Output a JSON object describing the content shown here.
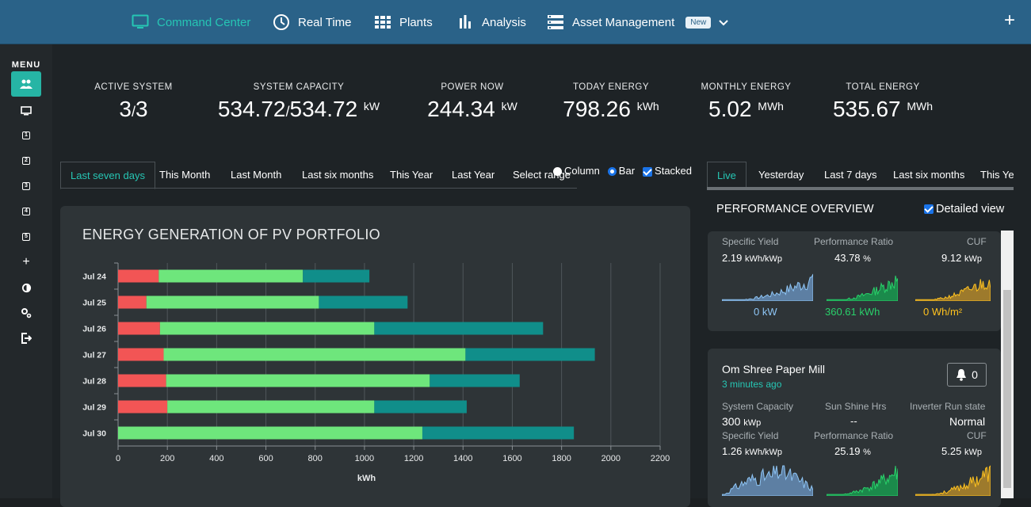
{
  "nav": {
    "items": [
      {
        "label": "Command Center",
        "icon": "monitor-icon",
        "active": true
      },
      {
        "label": "Real Time",
        "icon": "clock-icon"
      },
      {
        "label": "Plants",
        "icon": "grid-icon"
      },
      {
        "label": "Analysis",
        "icon": "bar-chart-icon"
      },
      {
        "label": "Asset Management",
        "icon": "server-icon"
      }
    ],
    "new_badge": "New",
    "plus": "+"
  },
  "sidebar": {
    "menu_label": "MENU",
    "items": [
      {
        "icon": "users-icon",
        "text": ""
      },
      {
        "icon": "monitor-icon",
        "text": ""
      },
      {
        "icon": "plant-1-icon",
        "text": "1"
      },
      {
        "icon": "plant-2-icon",
        "text": "2"
      },
      {
        "icon": "plant-3-icon",
        "text": "3"
      },
      {
        "icon": "plant-4-icon",
        "text": "4"
      },
      {
        "icon": "plant-5-icon",
        "text": "5"
      },
      {
        "icon": "plus-icon",
        "text": "+"
      },
      {
        "icon": "contrast-icon",
        "text": ""
      },
      {
        "icon": "settings-icon",
        "text": ""
      },
      {
        "icon": "logout-icon",
        "text": ""
      }
    ]
  },
  "kpis": {
    "active_system": {
      "label": "ACTIVE SYSTEM",
      "value": "3",
      "total": "3"
    },
    "system_capacity": {
      "label": "SYSTEM CAPACITY",
      "value": "534.72",
      "total": "534.72",
      "unit": "kW"
    },
    "power_now": {
      "label": "POWER NOW",
      "value": "244.34",
      "unit": "kW"
    },
    "today_energy": {
      "label": "TODAY ENERGY",
      "value": "798.26",
      "unit": "kWh"
    },
    "monthly_energy": {
      "label": "MONTHLY ENERGY",
      "value": "5.02",
      "unit": "MWh"
    },
    "total_energy": {
      "label": "TOTAL ENERGY",
      "value": "535.67",
      "unit": "MWh"
    }
  },
  "range_tabs": [
    "Last seven days",
    "This Month",
    "Last Month",
    "Last six months",
    "This Year",
    "Last Year",
    "Select range"
  ],
  "chart_options": {
    "column": "Column",
    "bar": "Bar",
    "stacked": "Stacked"
  },
  "right_tabs": [
    "Live",
    "Yesterday",
    "Last 7 days",
    "Last six months",
    "This Yea"
  ],
  "performance": {
    "title": "PERFORMANCE OVERVIEW",
    "detailed": "Detailed view"
  },
  "plant1": {
    "labels": {
      "yield": "Specific Yield",
      "pr": "Performance Ratio",
      "cuf": "CUF"
    },
    "yield": "2.19",
    "yield_unit": "kWh/kWp",
    "pr": "43.78",
    "pr_unit": "%",
    "cuf": "9.12",
    "cuf_unit": "kWp",
    "power": "0 kW",
    "energy": "360.61 kWh",
    "irr": "0 Wh/m²"
  },
  "plant2": {
    "name": "Om Shree Paper Mill",
    "ago": "3 minutes ago",
    "alerts": "0",
    "labels": {
      "capacity": "System Capacity",
      "sun": "Sun Shine Hrs",
      "inverter": "Inverter Run state",
      "yield": "Specific Yield",
      "pr": "Performance Ratio",
      "cuf": "CUF"
    },
    "capacity": "300",
    "capacity_unit": "kWp",
    "sun": "--",
    "inverter": "Normal",
    "yield": "1.26",
    "yield_unit": "kWh/kWp",
    "pr": "25.19",
    "pr_unit": "%",
    "cuf": "5.25",
    "cuf_unit": "kWp"
  },
  "colors": {
    "red": "#f25555",
    "green": "#6ee67c",
    "teal": "#108e8a",
    "accent": "#26c6b4"
  },
  "chart_data": {
    "type": "bar",
    "orientation": "horizontal",
    "stacked": true,
    "title": "ENERGY GENERATION OF PV PORTFOLIO",
    "xlabel": "kWh",
    "xlim": [
      0,
      2200
    ],
    "xticks": [
      0,
      200,
      400,
      600,
      800,
      1000,
      1200,
      1400,
      1600,
      1800,
      2000,
      2200
    ],
    "categories": [
      "Jul 24",
      "Jul 25",
      "Jul 26",
      "Jul 27",
      "Jul 28",
      "Jul 29",
      "Jul 30"
    ],
    "series": [
      {
        "color": "#f25555",
        "values": [
          165,
          115,
          170,
          185,
          195,
          200,
          0
        ]
      },
      {
        "color": "#6ee67c",
        "values": [
          585,
          700,
          870,
          1225,
          1070,
          840,
          1235
        ]
      },
      {
        "color": "#108e8a",
        "values": [
          270,
          360,
          685,
          525,
          365,
          375,
          615
        ]
      }
    ]
  }
}
